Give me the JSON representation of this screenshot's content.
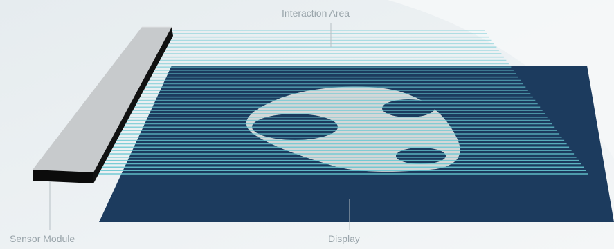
{
  "labels": {
    "interaction_area": "Interaction Area",
    "sensor_module": "Sensor Module",
    "display": "Display"
  },
  "colors": {
    "background": "#eef2f4",
    "display_panel": "#1c3b5e",
    "beam": "#67c7d1",
    "sensor_top": "#c7cacc",
    "sensor_front": "#0b0b0b",
    "object": "#d3d7d8",
    "leader_line": "#b6bfc4"
  }
}
